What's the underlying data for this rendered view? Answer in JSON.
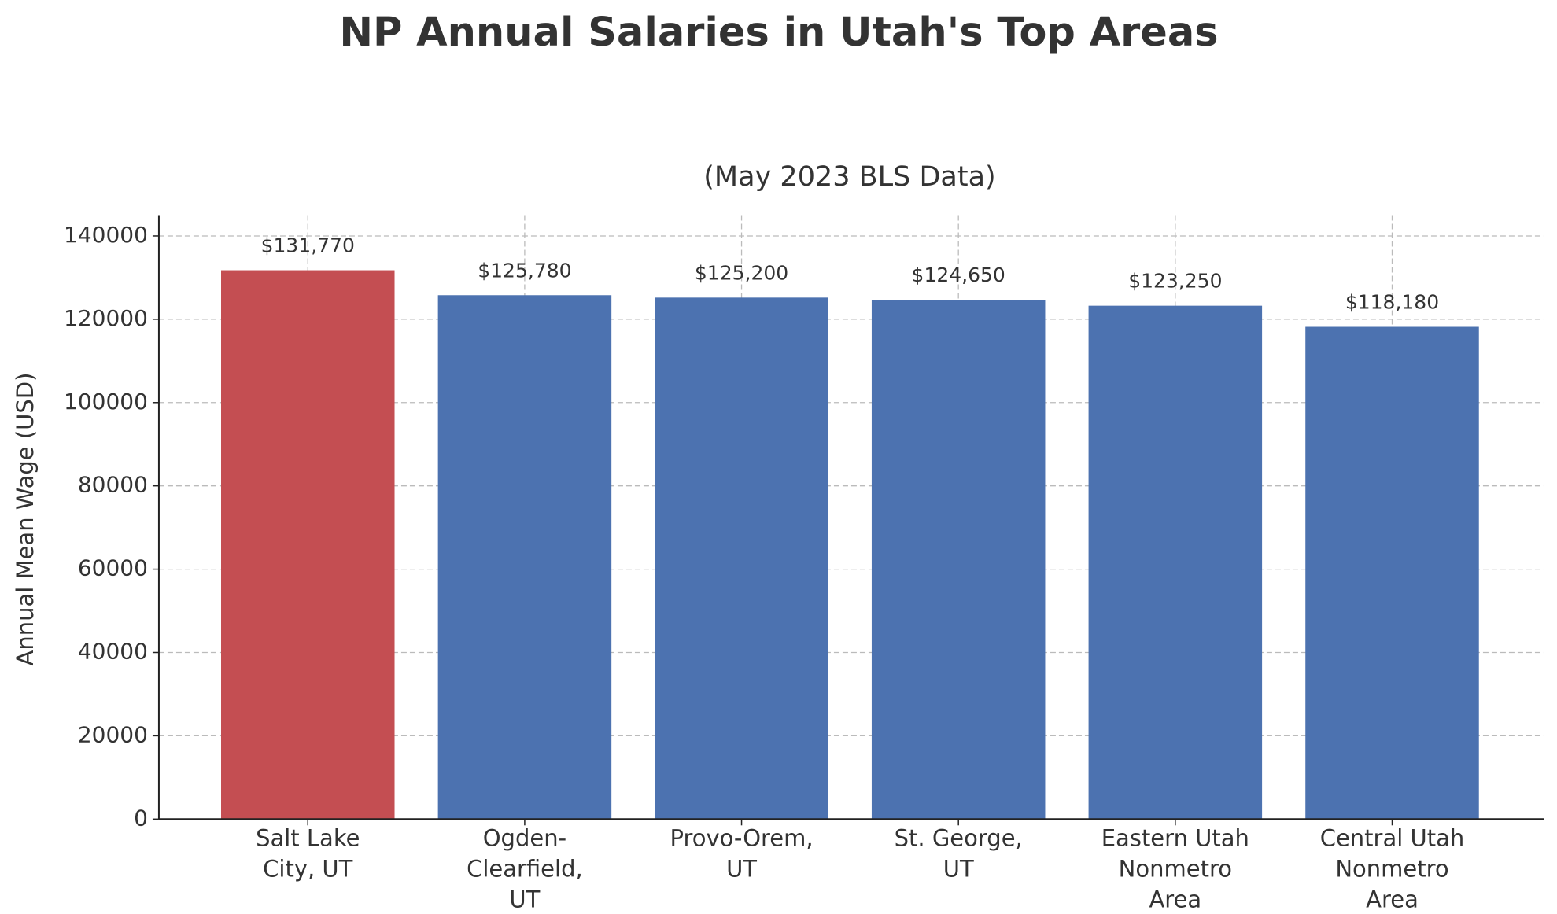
{
  "chart_data": {
    "type": "bar",
    "title": "NP Annual Salaries in Utah's Top Areas",
    "subtitle": "(May 2023 BLS Data)",
    "y_label": "Annual Mean Wage (USD)",
    "categories": [
      "Salt Lake\nCity, UT",
      "Ogden-\nClearfield,\nUT",
      "Provo-Orem,\nUT",
      "St. George,\nUT",
      "Eastern Utah\nNonmetro\nArea",
      "Central Utah\nNonmetro\nArea"
    ],
    "values": [
      131770,
      125780,
      125200,
      124650,
      123250,
      118180
    ],
    "value_labels": [
      "$131,770",
      "$125,780",
      "$125,200",
      "$124,650",
      "$123,250",
      "$118,180"
    ],
    "colors": [
      "#c44e52",
      "#4c72b0",
      "#4c72b0",
      "#4c72b0",
      "#4c72b0",
      "#4c72b0"
    ],
    "ylim": [
      0,
      145000
    ],
    "yticks": [
      0,
      20000,
      40000,
      60000,
      80000,
      100000,
      120000,
      140000
    ],
    "grid": true
  }
}
